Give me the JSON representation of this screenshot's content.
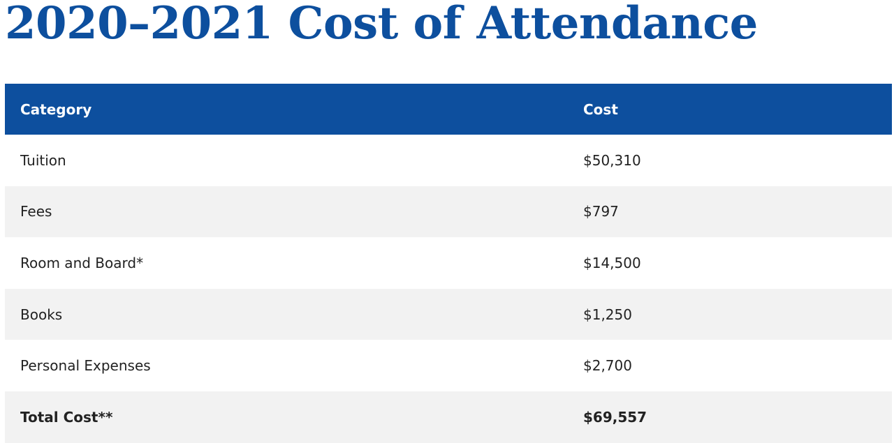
{
  "title": "2020–2021 Cost of Attendance",
  "table": {
    "headers": {
      "category": "Category",
      "cost": "Cost"
    },
    "rows": [
      {
        "category": "Tuition",
        "cost": "$50,310"
      },
      {
        "category": "Fees",
        "cost": "$797"
      },
      {
        "category": "Room and Board*",
        "cost": "$14,500"
      },
      {
        "category": "Books",
        "cost": "$1,250"
      },
      {
        "category": "Personal Expenses",
        "cost": "$2,700"
      }
    ],
    "total": {
      "category": "Total Cost**",
      "cost": "$69,557"
    }
  },
  "colors": {
    "accent": "#0d4f9e",
    "row_alt": "#f2f2f2"
  }
}
